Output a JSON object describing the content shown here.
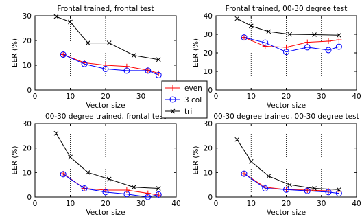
{
  "chart_data": [
    {
      "type": "line",
      "title": "Frontal trained, frontal test",
      "xlabel": "Vector size",
      "ylabel": "EER (%)",
      "xlim": [
        0,
        40
      ],
      "ylim": [
        0,
        30
      ],
      "xticks": [
        0,
        10,
        20,
        30,
        40
      ],
      "yticks": [
        0,
        10,
        20,
        30
      ],
      "vlines": [
        10,
        20,
        30
      ],
      "series": [
        {
          "name": "even",
          "color": "#ff0000",
          "marker": "plus",
          "x": [
            8,
            14,
            20,
            26,
            32,
            35
          ],
          "y": [
            14.3,
            11.0,
            10.0,
            9.5,
            8.0,
            6.7
          ]
        },
        {
          "name": "3 col",
          "color": "#0000ff",
          "marker": "circle",
          "x": [
            8,
            14,
            20,
            26,
            32,
            35
          ],
          "y": [
            14.3,
            10.5,
            8.5,
            7.8,
            7.8,
            6.0
          ]
        },
        {
          "name": "tri",
          "color": "#000000",
          "marker": "x",
          "x": [
            6,
            10,
            15,
            21,
            28,
            35
          ],
          "y": [
            29.7,
            27.5,
            19.0,
            19.0,
            14.0,
            12.3
          ]
        }
      ]
    },
    {
      "type": "line",
      "title": "Frontal trained, 00-30 degree test",
      "xlabel": "Vector size",
      "ylabel": "EER (%)",
      "xlim": [
        0,
        40
      ],
      "ylim": [
        0,
        40
      ],
      "xticks": [
        0,
        10,
        20,
        30,
        40
      ],
      "yticks": [
        0,
        10,
        20,
        30,
        40
      ],
      "vlines": [
        10,
        20,
        30
      ],
      "series": [
        {
          "name": "even",
          "color": "#ff0000",
          "marker": "plus",
          "x": [
            8,
            14,
            20,
            26,
            32,
            35
          ],
          "y": [
            28.3,
            23.5,
            23.0,
            25.7,
            26.3,
            27.0
          ]
        },
        {
          "name": "3 col",
          "color": "#0000ff",
          "marker": "circle",
          "x": [
            8,
            14,
            20,
            26,
            32,
            35
          ],
          "y": [
            28.3,
            25.5,
            20.5,
            23.0,
            21.5,
            23.3
          ]
        },
        {
          "name": "tri",
          "color": "#000000",
          "marker": "x",
          "x": [
            6,
            10,
            15,
            21,
            28,
            35
          ],
          "y": [
            38.5,
            34.5,
            31.5,
            30.0,
            29.8,
            29.5
          ]
        }
      ]
    },
    {
      "type": "line",
      "title": "00-30 degree trained, frontal test",
      "xlabel": "Vector size",
      "ylabel": "EER (%)",
      "xlim": [
        0,
        40
      ],
      "ylim": [
        0,
        30
      ],
      "xticks": [
        0,
        10,
        20,
        30,
        40
      ],
      "yticks": [
        0,
        10,
        20,
        30
      ],
      "vlines": [
        10,
        20,
        30
      ],
      "series": [
        {
          "name": "even",
          "color": "#ff0000",
          "marker": "plus",
          "x": [
            8,
            14,
            20,
            26,
            32,
            35
          ],
          "y": [
            9.5,
            3.5,
            2.8,
            2.8,
            1.5,
            0.8
          ]
        },
        {
          "name": "3 col",
          "color": "#0000ff",
          "marker": "circle",
          "x": [
            8,
            14,
            20,
            26,
            32,
            35
          ],
          "y": [
            9.3,
            3.5,
            2.0,
            1.2,
            0.0,
            1.0
          ]
        },
        {
          "name": "tri",
          "color": "#000000",
          "marker": "x",
          "x": [
            6,
            10,
            15,
            21,
            28,
            35
          ],
          "y": [
            26.0,
            16.3,
            10.0,
            7.3,
            4.0,
            3.5
          ]
        }
      ]
    },
    {
      "type": "line",
      "title": "00-30 degree trained, 00-30 degree test",
      "xlabel": "Vector size",
      "ylabel": "EER (%)",
      "xlim": [
        0,
        40
      ],
      "ylim": [
        0,
        30
      ],
      "xticks": [
        0,
        10,
        20,
        30,
        40
      ],
      "yticks": [
        0,
        10,
        20,
        30
      ],
      "vlines": [
        10,
        20,
        30
      ],
      "series": [
        {
          "name": "even",
          "color": "#ff0000",
          "marker": "plus",
          "x": [
            8,
            14,
            20,
            26,
            32,
            35
          ],
          "y": [
            9.5,
            4.0,
            3.0,
            2.8,
            2.5,
            2.3
          ]
        },
        {
          "name": "3 col",
          "color": "#0000ff",
          "marker": "circle",
          "x": [
            8,
            14,
            20,
            26,
            32,
            35
          ],
          "y": [
            9.5,
            3.5,
            3.0,
            2.5,
            2.0,
            1.5
          ]
        },
        {
          "name": "tri",
          "color": "#000000",
          "marker": "x",
          "x": [
            6,
            10,
            15,
            21,
            28,
            35
          ],
          "y": [
            23.5,
            14.5,
            8.5,
            5.0,
            3.5,
            3.0
          ]
        }
      ]
    }
  ],
  "legend": {
    "placement": "center",
    "entries": [
      {
        "label": "even",
        "color": "#ff0000",
        "marker": "plus"
      },
      {
        "label": "3 col",
        "color": "#0000ff",
        "marker": "circle"
      },
      {
        "label": "tri",
        "color": "#000000",
        "marker": "x"
      }
    ]
  }
}
